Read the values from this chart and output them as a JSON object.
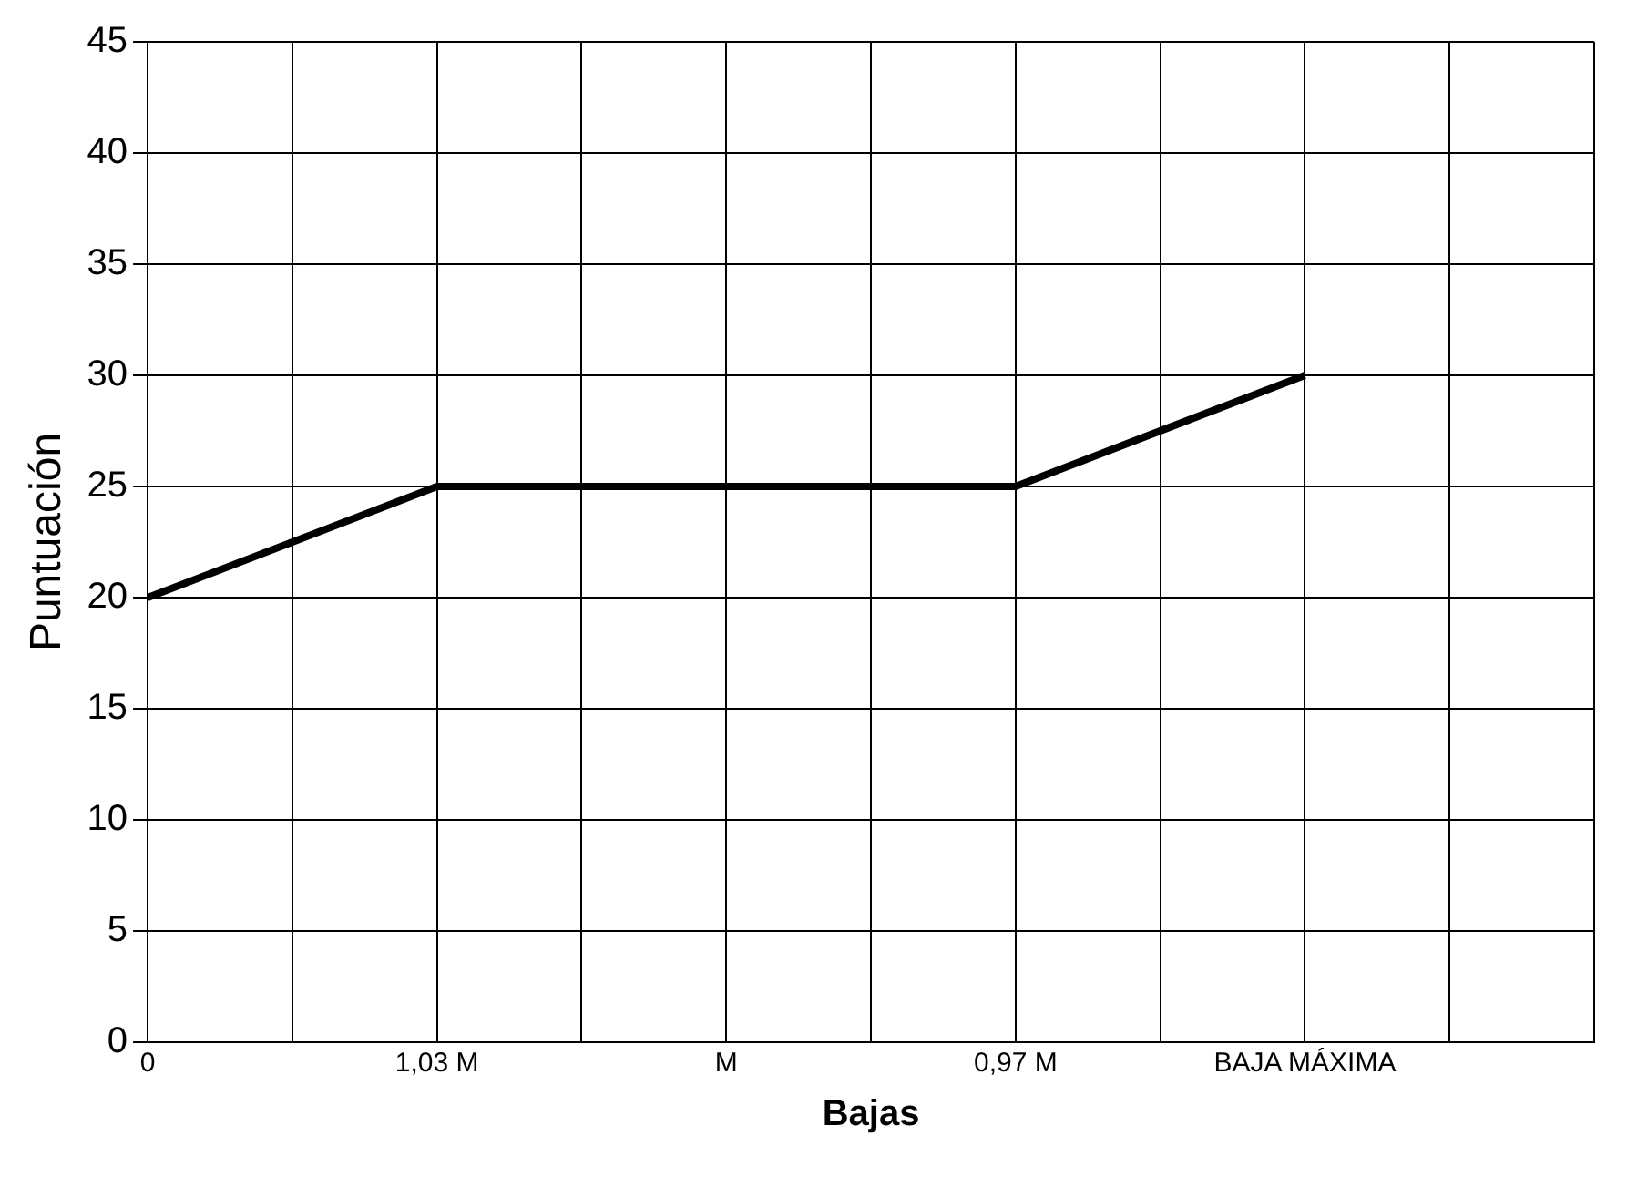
{
  "chart_data": {
    "type": "line",
    "xlabel": "Bajas",
    "ylabel": "Puntuación",
    "categories": [
      "0",
      "1,03 M",
      "M",
      "0,97 M",
      "BAJA MÁXIMA"
    ],
    "series": [
      {
        "color": "#000000",
        "values": [
          20,
          25,
          25,
          25,
          30
        ]
      }
    ],
    "ylim": [
      0,
      45
    ],
    "yticks": [
      0,
      5,
      10,
      15,
      20,
      25,
      30,
      35,
      40,
      45
    ],
    "grid": true,
    "legend": false,
    "marker": "none",
    "line_style": "solid"
  }
}
